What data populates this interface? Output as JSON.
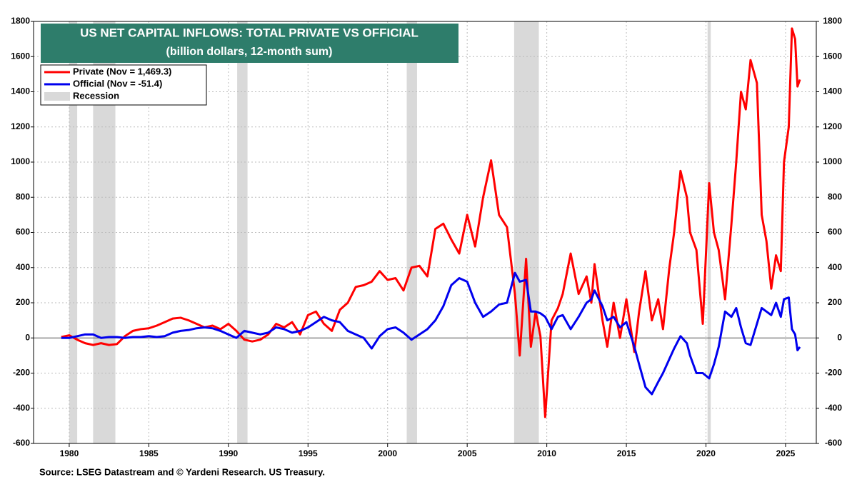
{
  "chart_data": {
    "type": "line",
    "title": "US NET CAPITAL INFLOWS: TOTAL PRIVATE VS OFFICIAL",
    "subtitle": "(billion dollars, 12-month sum)",
    "source": "Source: LSEG Datastream and © Yardeni Research. US Treasury.",
    "x": [
      1979.5,
      1980,
      1980.5,
      1981,
      1981.5,
      1982,
      1982.5,
      1983,
      1983.5,
      1984,
      1984.5,
      1985,
      1985.5,
      1986,
      1986.5,
      1987,
      1987.5,
      1988,
      1988.5,
      1989,
      1989.5,
      1990,
      1990.5,
      1991,
      1991.5,
      1992,
      1992.5,
      1993,
      1993.5,
      1994,
      1994.5,
      1995,
      1995.5,
      1996,
      1996.5,
      1997,
      1997.5,
      1998,
      1998.5,
      1999,
      1999.5,
      2000,
      2000.5,
      2001,
      2001.5,
      2002,
      2002.5,
      2003,
      2003.5,
      2004,
      2004.5,
      2005,
      2005.5,
      2006,
      2006.5,
      2007,
      2007.5,
      2008,
      2008.3,
      2008.7,
      2009,
      2009.3,
      2009.6,
      2009.9,
      2010.3,
      2010.7,
      2011,
      2011.5,
      2012,
      2012.5,
      2012.8,
      2013,
      2013.5,
      2013.8,
      2014.2,
      2014.6,
      2015,
      2015.5,
      2015.8,
      2016.2,
      2016.6,
      2017,
      2017.3,
      2017.7,
      2018,
      2018.4,
      2018.8,
      2019,
      2019.4,
      2019.8,
      2020.2,
      2020.5,
      2020.8,
      2021.2,
      2021.6,
      2021.9,
      2022.2,
      2022.5,
      2022.8,
      2023.2,
      2023.5,
      2023.8,
      2024.1,
      2024.4,
      2024.7,
      2024.9,
      2025.2,
      2025.4,
      2025.6,
      2025.75,
      2025.9
    ],
    "series": [
      {
        "name": "Private (Nov = 1,469.3)",
        "color": "#ff0000",
        "values": [
          5,
          15,
          -10,
          -30,
          -40,
          -30,
          -40,
          -35,
          10,
          40,
          50,
          55,
          70,
          90,
          110,
          115,
          100,
          80,
          60,
          70,
          50,
          80,
          40,
          -10,
          -20,
          -10,
          20,
          80,
          60,
          90,
          20,
          130,
          150,
          80,
          40,
          160,
          200,
          290,
          300,
          320,
          380,
          330,
          340,
          270,
          400,
          410,
          350,
          620,
          650,
          560,
          480,
          700,
          520,
          800,
          1010,
          700,
          630,
          250,
          -100,
          450,
          -50,
          150,
          10,
          -450,
          100,
          170,
          250,
          480,
          250,
          350,
          200,
          420,
          100,
          -50,
          200,
          0,
          220,
          -80,
          150,
          380,
          100,
          220,
          50,
          400,
          600,
          950,
          800,
          600,
          500,
          80,
          880,
          600,
          500,
          220,
          650,
          1000,
          1400,
          1300,
          1580,
          1450,
          700,
          550,
          280,
          470,
          380,
          1000,
          1200,
          1760,
          1700,
          1430,
          1469.3
        ]
      },
      {
        "name": "Official (Nov = -51.4)",
        "color": "#0000ee",
        "values": [
          0,
          0,
          10,
          20,
          20,
          0,
          5,
          5,
          0,
          5,
          5,
          10,
          5,
          10,
          30,
          40,
          45,
          55,
          60,
          55,
          40,
          20,
          0,
          40,
          30,
          20,
          30,
          60,
          50,
          30,
          40,
          60,
          90,
          120,
          100,
          90,
          40,
          20,
          0,
          -60,
          10,
          50,
          60,
          30,
          -10,
          20,
          50,
          100,
          180,
          300,
          340,
          320,
          200,
          120,
          150,
          190,
          200,
          370,
          320,
          330,
          150,
          150,
          140,
          120,
          50,
          120,
          130,
          50,
          120,
          200,
          220,
          270,
          180,
          100,
          120,
          60,
          90,
          -50,
          -150,
          -280,
          -320,
          -250,
          -200,
          -120,
          -60,
          10,
          -30,
          -100,
          -200,
          -200,
          -230,
          -150,
          -50,
          150,
          120,
          170,
          60,
          -30,
          -40,
          80,
          170,
          150,
          130,
          200,
          120,
          220,
          230,
          50,
          20,
          -70,
          -51.4
        ]
      }
    ],
    "recession_name": "Recession",
    "recession_color": "#d9d9d9",
    "recessions": [
      [
        1980.0,
        1980.5
      ],
      [
        1981.5,
        1982.9
      ],
      [
        1990.55,
        1991.2
      ],
      [
        2001.2,
        2001.85
      ],
      [
        2007.95,
        2009.5
      ],
      [
        2020.1,
        2020.3
      ]
    ],
    "xlim": [
      1977.76,
      2026.93
    ],
    "xticks": [
      1980,
      1985,
      1990,
      1995,
      2000,
      2005,
      2010,
      2015,
      2020,
      2025
    ],
    "ylim": [
      -600,
      1800
    ],
    "yticks": [
      -600,
      -400,
      -200,
      0,
      200,
      400,
      600,
      800,
      1000,
      1200,
      1400,
      1600,
      1800
    ],
    "y2lim": [
      -600,
      1800
    ],
    "y2ticks": [
      -600,
      -400,
      -200,
      0,
      200,
      400,
      600,
      800,
      1000,
      1200,
      1400,
      1600,
      1800
    ],
    "grid": true
  }
}
